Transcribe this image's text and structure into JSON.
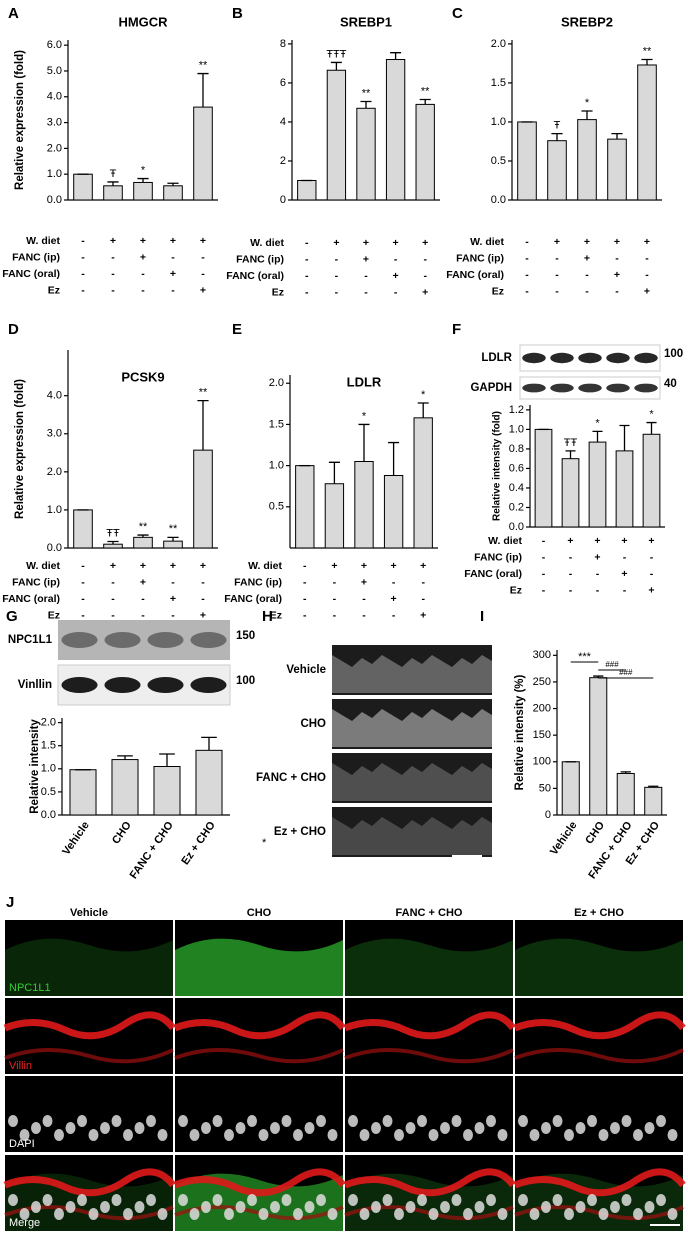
{
  "chart_data": [
    {
      "label": "A",
      "type": "bar",
      "title": "HMGCR",
      "ylabel": "Relative expression (fold)",
      "color": "#d9d9d9",
      "values": [
        1.0,
        0.55,
        0.68,
        0.55,
        3.6
      ],
      "errors": [
        0,
        0.15,
        0.15,
        0.1,
        1.3
      ],
      "annotations": [
        null,
        "Ŧ",
        "*",
        null,
        "**"
      ],
      "ylim": [
        0,
        6.2
      ],
      "yticks": [
        {
          "value": 0,
          "label": "0.0"
        },
        {
          "value": 1,
          "label": "1.0"
        },
        {
          "value": 2,
          "label": "2.0"
        },
        {
          "value": 3,
          "label": "3.0"
        },
        {
          "value": 4,
          "label": "4.0"
        },
        {
          "value": 5,
          "label": "5.0"
        },
        {
          "value": 6,
          "label": "6.0"
        }
      ],
      "treatments": [
        {
          "name": "W. diet",
          "signs": [
            "-",
            "+",
            "+",
            "+",
            "+"
          ]
        },
        {
          "name": "FANC (ip)",
          "signs": [
            "-",
            "-",
            "+",
            "-",
            "-"
          ]
        },
        {
          "name": "FANC (oral)",
          "signs": [
            "-",
            "-",
            "-",
            "+",
            "-"
          ]
        },
        {
          "name": "Ez",
          "signs": [
            "-",
            "-",
            "-",
            "-",
            "+"
          ]
        }
      ]
    },
    {
      "label": "B",
      "type": "bar",
      "title": "SREBP1",
      "color": "#d9d9d9",
      "values": [
        1.0,
        6.65,
        4.7,
        7.2,
        4.9
      ],
      "errors": [
        0,
        0.4,
        0.35,
        0.35,
        0.25
      ],
      "annotations": [
        null,
        "ŦŦŦ",
        "**",
        null,
        "**"
      ],
      "ylim": [
        0,
        8.2
      ],
      "yticks": [
        0,
        2,
        4,
        6,
        8
      ],
      "treatments": [
        {
          "name": "W. diet",
          "signs": [
            "-",
            "+",
            "+",
            "+",
            "+"
          ]
        },
        {
          "name": "FANC (ip)",
          "signs": [
            "-",
            "-",
            "+",
            "-",
            "-"
          ]
        },
        {
          "name": "FANC (oral)",
          "signs": [
            "-",
            "-",
            "-",
            "+",
            "-"
          ]
        },
        {
          "name": "Ez",
          "signs": [
            "-",
            "-",
            "-",
            "-",
            "+"
          ]
        }
      ]
    },
    {
      "label": "C",
      "type": "bar",
      "title": "SREBP2",
      "color": "#d9d9d9",
      "values": [
        1.0,
        0.76,
        1.03,
        0.78,
        1.73
      ],
      "errors": [
        0,
        0.09,
        0.11,
        0.07,
        0.07
      ],
      "annotations": [
        null,
        "Ŧ",
        "*",
        null,
        "**"
      ],
      "ylim": [
        0,
        2.05
      ],
      "yticks": [
        {
          "value": 0,
          "label": "0.0"
        },
        {
          "value": 0.5,
          "label": "0.5"
        },
        {
          "value": 1,
          "label": "1.0"
        },
        {
          "value": 1.5,
          "label": "1.5"
        },
        {
          "value": 2,
          "label": "2.0"
        }
      ],
      "treatments": [
        {
          "name": "W. diet",
          "signs": [
            "-",
            "+",
            "+",
            "+",
            "+"
          ]
        },
        {
          "name": "FANC (ip)",
          "signs": [
            "-",
            "-",
            "+",
            "-",
            "-"
          ]
        },
        {
          "name": "FANC (oral)",
          "signs": [
            "-",
            "-",
            "-",
            "+",
            "-"
          ]
        },
        {
          "name": "Ez",
          "signs": [
            "-",
            "-",
            "-",
            "-",
            "+"
          ]
        }
      ]
    },
    {
      "label": "D",
      "type": "bar",
      "title": "PCSK9",
      "ylabel": "Relative expression (fold)",
      "color": "#d9d9d9",
      "values": [
        1.0,
        0.1,
        0.28,
        0.18,
        2.57
      ],
      "errors": [
        0,
        0.07,
        0.06,
        0.1,
        1.3
      ],
      "annotations": [
        null,
        "ŦŦ",
        "**",
        "**",
        "**"
      ],
      "ylim": [
        0,
        5.2
      ],
      "yticks": [
        {
          "value": 0,
          "label": "0.0"
        },
        {
          "value": 1,
          "label": "1.0"
        },
        {
          "value": 2,
          "label": "2.0"
        },
        {
          "value": 3,
          "label": "3.0"
        },
        {
          "value": 4,
          "label": "4.0"
        }
      ],
      "treatments": [
        {
          "name": "W. diet",
          "signs": [
            "-",
            "+",
            "+",
            "+",
            "+"
          ]
        },
        {
          "name": "FANC (ip)",
          "signs": [
            "-",
            "-",
            "+",
            "-",
            "-"
          ]
        },
        {
          "name": "FANC (oral)",
          "signs": [
            "-",
            "-",
            "-",
            "+",
            "-"
          ]
        },
        {
          "name": "Ez",
          "signs": [
            "-",
            "-",
            "-",
            "-",
            "+"
          ]
        }
      ]
    },
    {
      "label": "E",
      "type": "bar",
      "title": "LDLR",
      "color": "#d9d9d9",
      "values": [
        1.0,
        0.78,
        1.05,
        0.88,
        1.58
      ],
      "errors": [
        0,
        0.26,
        0.45,
        0.4,
        0.18
      ],
      "annotations": [
        null,
        null,
        "*",
        null,
        "*"
      ],
      "ylim": [
        0,
        2.1
      ],
      "yticks": [
        {
          "value": 0.5,
          "label": "0.5"
        },
        {
          "value": 1,
          "label": "1.0"
        },
        {
          "value": 1.5,
          "label": "1.5"
        },
        {
          "value": 2,
          "label": "2.0"
        }
      ],
      "treatments": [
        {
          "name": "W. diet",
          "signs": [
            "-",
            "+",
            "+",
            "+",
            "+"
          ]
        },
        {
          "name": "FANC (ip)",
          "signs": [
            "-",
            "-",
            "+",
            "-",
            "-"
          ]
        },
        {
          "name": "FANC (oral)",
          "signs": [
            "-",
            "-",
            "-",
            "+",
            "-"
          ]
        },
        {
          "name": "Ez",
          "signs": [
            "-",
            "-",
            "-",
            "-",
            "+"
          ]
        }
      ]
    },
    {
      "label": "F",
      "type": "bar",
      "ylabel": "Relative intensity (fold)",
      "color": "#d9d9d9",
      "blot": [
        {
          "name": "LDLR",
          "size": 100
        },
        {
          "name": "GAPDH",
          "size": 40
        }
      ],
      "values": [
        1.0,
        0.7,
        0.87,
        0.78,
        0.95
      ],
      "errors": [
        0,
        0.08,
        0.11,
        0.26,
        0.12
      ],
      "annotations": [
        null,
        "ŦŦ",
        "*",
        null,
        "*"
      ],
      "ylim": [
        0,
        1.25
      ],
      "yticks": [
        {
          "value": 0,
          "label": "0.0"
        },
        {
          "value": 0.2,
          "label": "0.2"
        },
        {
          "value": 0.4,
          "label": "0.4"
        },
        {
          "value": 0.6,
          "label": "0.6"
        },
        {
          "value": 0.8,
          "label": "0.8"
        },
        {
          "value": 1,
          "label": "1.0"
        },
        {
          "value": 1.2,
          "label": "1.2"
        }
      ],
      "treatments": [
        {
          "name": "W. diet",
          "signs": [
            "-",
            "+",
            "+",
            "+",
            "+"
          ]
        },
        {
          "name": "FANC (ip)",
          "signs": [
            "-",
            "-",
            "+",
            "-",
            "-"
          ]
        },
        {
          "name": "FANC (oral)",
          "signs": [
            "-",
            "-",
            "-",
            "+",
            "-"
          ]
        },
        {
          "name": "Ez",
          "signs": [
            "-",
            "-",
            "-",
            "-",
            "+"
          ]
        }
      ]
    },
    {
      "label": "G",
      "type": "bar",
      "ylabel": "Relative intensity",
      "color": "#d9d9d9",
      "blot": [
        {
          "name": "NPC1L1",
          "size": 150
        },
        {
          "name": "Vinllin",
          "size": 100
        }
      ],
      "categories": [
        "Vehicle",
        "CHO",
        "FANC + CHO",
        "Ez + CHO"
      ],
      "values": [
        0.98,
        1.2,
        1.05,
        1.4
      ],
      "errors": [
        0,
        0.08,
        0.27,
        0.28
      ],
      "ylim": [
        0,
        2.1
      ],
      "yticks": [
        {
          "value": 0,
          "label": "0.0"
        },
        {
          "value": 0.5,
          "label": "0.5"
        },
        {
          "value": 1,
          "label": "1.0"
        },
        {
          "value": 1.5,
          "label": "1.5"
        },
        {
          "value": 2,
          "label": "2.0"
        }
      ]
    },
    {
      "label": "I",
      "type": "bar",
      "ylabel": "Relative intensity (%)",
      "color": "#d9d9d9",
      "categories": [
        "Vehicle",
        "CHO",
        "FANC + CHO",
        "Ez + CHO"
      ],
      "values": [
        100,
        258,
        78,
        52
      ],
      "errors": [
        0,
        3,
        3,
        2
      ],
      "brackets": [
        "***",
        "###",
        "###"
      ],
      "ylim": [
        0,
        310
      ],
      "yticks": [
        0,
        50,
        100,
        150,
        200,
        250,
        300
      ]
    }
  ],
  "panel_h": {
    "label": "H",
    "rows": [
      "Vehicle",
      "CHO",
      "FANC + CHO",
      "Ez + CHO"
    ],
    "note": "*"
  },
  "panel_j": {
    "label": "J",
    "columns": [
      "Vehicle",
      "CHO",
      "FANC + CHO",
      "Ez + CHO"
    ],
    "rows": [
      "NPC1L1",
      "Villin",
      "DAPI",
      "Merge"
    ],
    "row_colors": [
      "#33cc33",
      "#ee2222",
      "#ffffff",
      "#ffffff"
    ]
  }
}
